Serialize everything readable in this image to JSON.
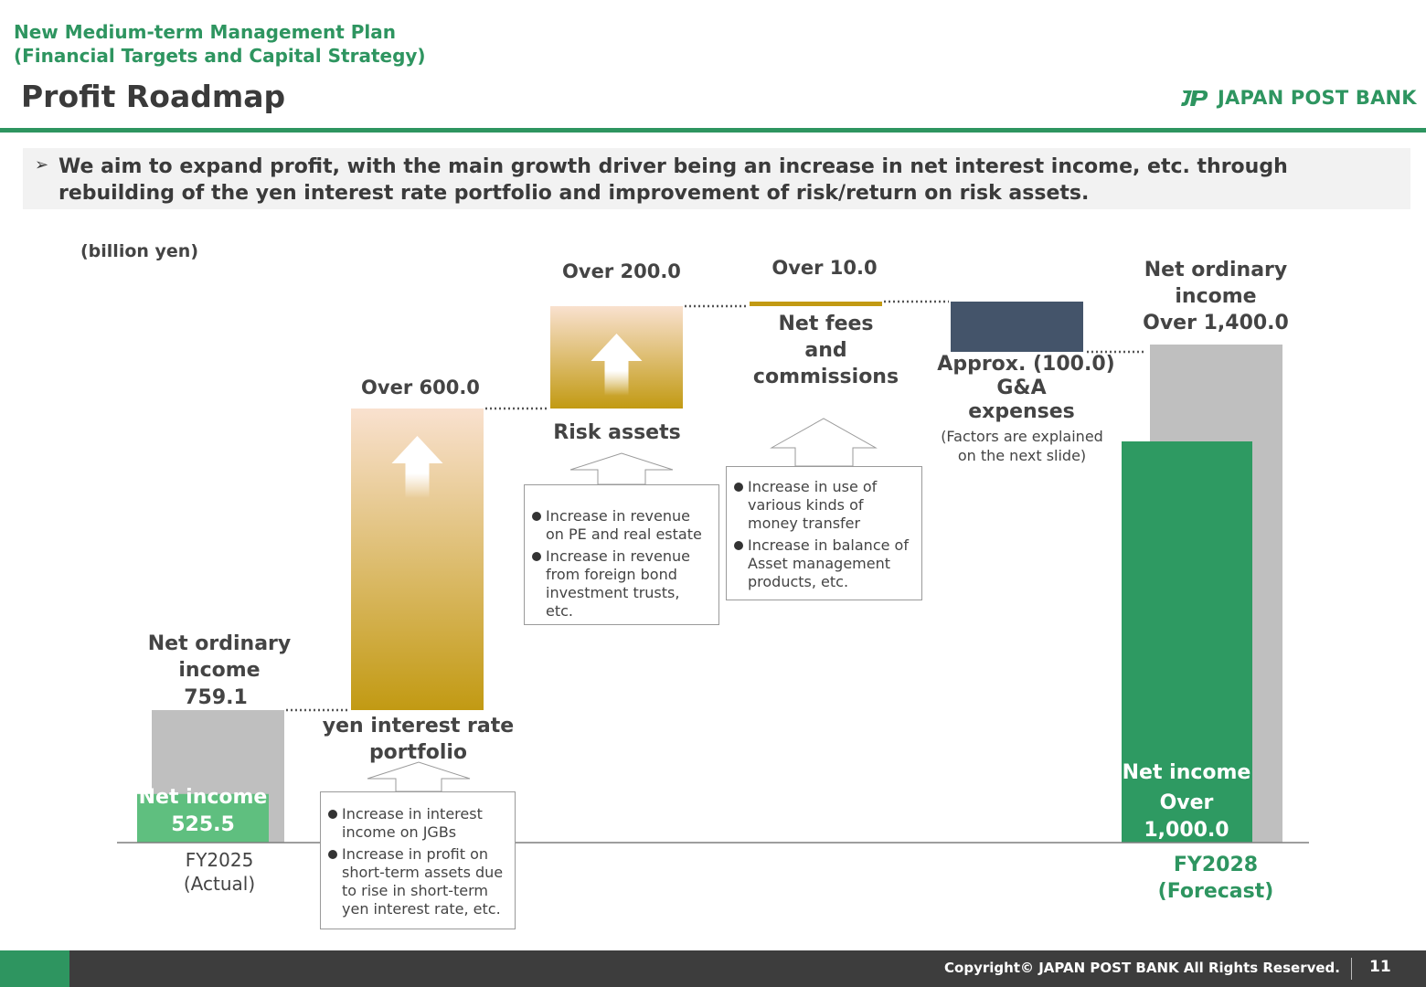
{
  "header": {
    "subtitle_line1": "New Medium-term Management Plan",
    "subtitle_line2": "(Financial Targets and Capital Strategy)",
    "title": "Profit Roadmap",
    "brand": "JAPAN POST BANK"
  },
  "message": {
    "bullet": "➢",
    "text": "We aim to expand profit, with the main growth driver being an increase in net interest income, etc. through rebuilding of the yen interest rate portfolio and improvement of risk/return on risk assets."
  },
  "chart_data": {
    "type": "bar",
    "unit_label": "(billion yen)",
    "start": {
      "label_line1": "Net ordinary",
      "label_line2": "income",
      "net_ordinary_income": 759.1,
      "net_income": 525.5,
      "net_income_label_line1": "Net income",
      "net_income_label_line2": "525.5",
      "axis_label_line1": "FY2025",
      "axis_label_line2": "(Actual)"
    },
    "steps": [
      {
        "value_label": "Over 600.0",
        "value": 600.0,
        "name_line1": "yen interest rate",
        "name_line2": "portfolio",
        "bullets": [
          "Increase in interest income on JGBs",
          "Increase in profit on short-term assets due to rise in short-term yen interest rate, etc."
        ]
      },
      {
        "value_label": "Over 200.0",
        "value": 200.0,
        "name_line1": "Risk assets",
        "bullets": [
          "Increase in revenue on PE and real estate",
          "Increase in revenue from foreign bond investment trusts, etc."
        ]
      },
      {
        "value_label": "Over 10.0",
        "value": 10.0,
        "name_line1": "Net fees",
        "name_line2": "and",
        "name_line3": "commissions",
        "bullets": [
          "Increase in use of various kinds of money transfer",
          "Increase in balance of Asset management products, etc."
        ]
      },
      {
        "value_label": "Approx. (100.0)",
        "value": -100.0,
        "name_line1": "G&A",
        "name_line2": "expenses",
        "note_line1": "(Factors are explained",
        "note_line2": "on the next slide)"
      }
    ],
    "end": {
      "label_line1": "Net ordinary",
      "label_line2": "income",
      "label_line3": "Over 1,400.0",
      "net_ordinary_income": 1400.0,
      "net_income": 1000.0,
      "net_income_label_line1": "Net income",
      "net_income_label_line2": "Over",
      "net_income_label_line3": "1,000.0",
      "axis_label_line1": "FY2028",
      "axis_label_line2": "(Forecast)"
    },
    "colors": {
      "ordinary": "#bfbfbf",
      "net_income_start": "#5fbf7f",
      "net_income_end": "#2e9a62",
      "increase_top": "#f9e1cf",
      "increase_bottom": "#c29a13",
      "fees": "#c29a13",
      "expenses": "#44546a"
    }
  },
  "footer": {
    "copyright": "Copyright© JAPAN POST BANK All Rights Reserved.",
    "page": "11"
  }
}
